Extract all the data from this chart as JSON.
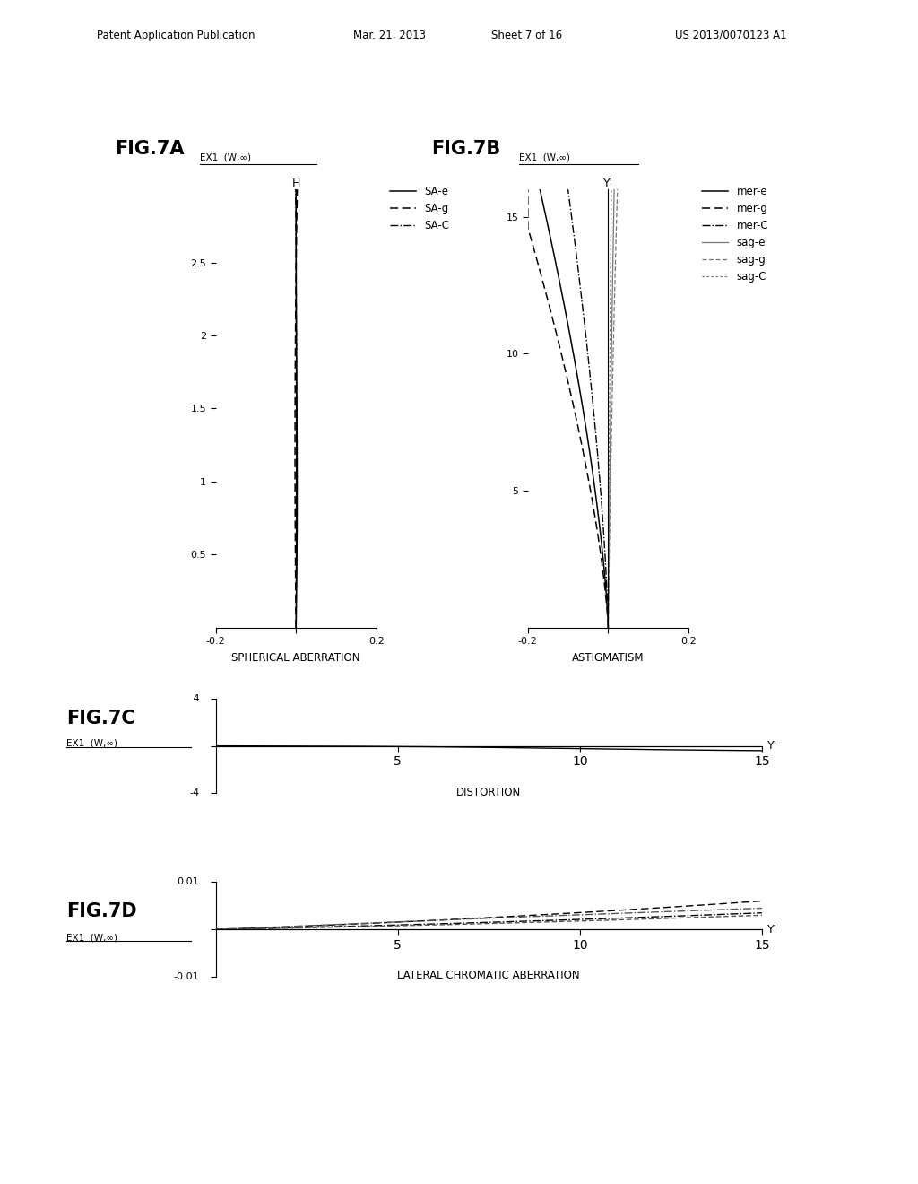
{
  "header_pub": "Patent Application Publication",
  "header_date": "Mar. 21, 2013",
  "header_sheet": "Sheet 7 of 16",
  "header_patent": "US 2013/0070123 A1",
  "figA_title": "FIG.7A",
  "figA_sub": "EX1  (W,∞)",
  "figB_title": "FIG.7B",
  "figB_sub": "EX1  (W,∞)",
  "figC_title": "FIG.7C",
  "figC_sub": "EX1  (W,∞)",
  "figD_title": "FIG.7D",
  "figD_sub": "EX1  (W,∞)",
  "labelA": "SPHERICAL ABERRATION",
  "labelB": "ASTIGMATISM",
  "labelC": "DISTORTION",
  "labelD": "LATERAL CHROMATIC ABERRATION",
  "bg": "#ffffff"
}
